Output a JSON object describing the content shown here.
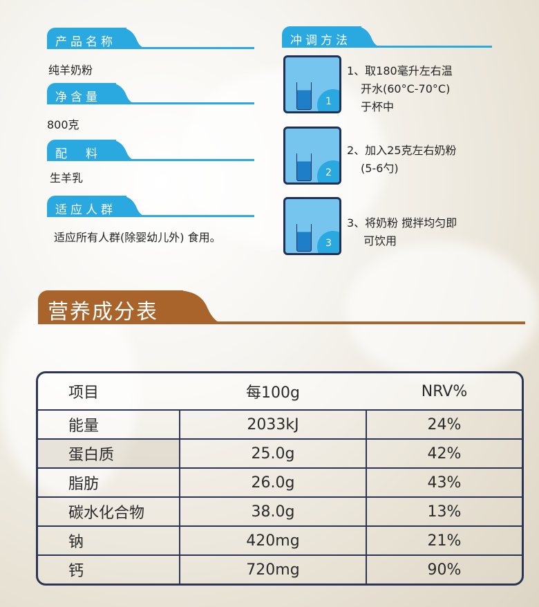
{
  "info": [
    {
      "label": "产品名称",
      "value": "纯羊奶粉"
    },
    {
      "label": "净含量",
      "value": "800克"
    },
    {
      "label": "配　料",
      "value": "生羊乳"
    },
    {
      "label": "适应人群",
      "value": "适应所有人群(除婴幼儿外) 食用。"
    }
  ],
  "method": {
    "label": "冲调方法",
    "steps": [
      {
        "num": "1",
        "line1": "1、取180毫升左右温",
        "line2": "开水(60°C-70°C)",
        "line3": "于杯中"
      },
      {
        "num": "2",
        "line1": "2、加入25克左右奶粉",
        "line2": "(5-6勺)",
        "line3": ""
      },
      {
        "num": "3",
        "line1": "3、将奶粉 搅拌均匀即",
        "line2": "可饮用",
        "line3": ""
      }
    ]
  },
  "nutrition": {
    "title": "营养成分表",
    "headers": [
      "项目",
      "每100g",
      "NRV%"
    ],
    "rows": [
      [
        "能量",
        "2033kJ",
        "24%"
      ],
      [
        "蛋白质",
        "25.0g",
        "42%"
      ],
      [
        "脂肪",
        "26.0g",
        "43%"
      ],
      [
        "碳水化合物",
        "38.0g",
        "13%"
      ],
      [
        "钠",
        "420mg",
        "21%"
      ],
      [
        "钙",
        "720mg",
        "90%"
      ]
    ]
  },
  "colors": {
    "tab": "#2aa8e0",
    "title": "#a9642c",
    "table_border": "#2a3454"
  }
}
